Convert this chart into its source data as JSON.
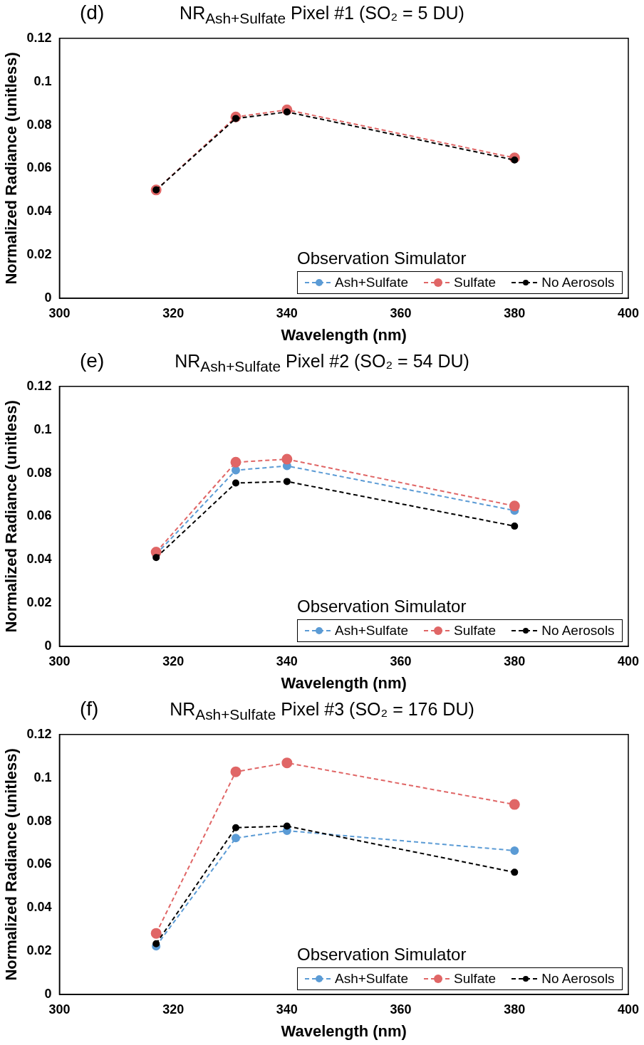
{
  "chart_data": [
    {
      "type": "line",
      "title": "NR$_{Ash+Sulfate}$  Pixel #1   (SO₂ = 5 DU)",
      "annotations": [
        "(d)"
      ],
      "xlabel": "Wavelength (nm)",
      "ylabel": "Normalized Radiance (unitless)",
      "legend_title": "Observation Simulator",
      "legend": "bottom right",
      "marker": "circle",
      "line_style": "dashed",
      "grid": false,
      "x": [
        317,
        331,
        340,
        380
      ],
      "xlim": [
        300,
        400
      ],
      "xticks": [
        300,
        320,
        340,
        360,
        380,
        400
      ],
      "ylim": [
        0,
        0.12
      ],
      "yticks": [
        0,
        0.02,
        0.04,
        0.06,
        0.08,
        0.1,
        0.12
      ],
      "series": [
        {
          "name": "Ash+Sulfate",
          "color": "#5b9bd5",
          "values": [
            null,
            null,
            null,
            null
          ]
        },
        {
          "name": "Sulfate",
          "color": "#e06666",
          "values": [
            0.05,
            0.0837,
            0.087,
            0.0648
          ]
        },
        {
          "name": "No Aerosols",
          "color": "#000000",
          "values": [
            0.05,
            0.083,
            0.086,
            0.0638
          ]
        }
      ]
    },
    {
      "type": "line",
      "title": "NR$_{Ash+Sulfate}$  Pixel #2   (SO₂ = 54 DU)",
      "annotations": [
        "(e)"
      ],
      "xlabel": "Wavelength (nm)",
      "ylabel": "Normalized Radiance (unitless)",
      "legend_title": "Observation Simulator",
      "legend": "bottom right",
      "marker": "circle",
      "line_style": "dashed",
      "grid": false,
      "x": [
        317,
        331,
        340,
        380
      ],
      "xlim": [
        300,
        400
      ],
      "xticks": [
        300,
        320,
        340,
        360,
        380,
        400
      ],
      "ylim": [
        0,
        0.12
      ],
      "yticks": [
        0,
        0.02,
        0.04,
        0.06,
        0.08,
        0.1,
        0.12
      ],
      "series": [
        {
          "name": "Ash+Sulfate",
          "color": "#5b9bd5",
          "values": [
            0.0425,
            0.0813,
            0.0833,
            0.0627
          ]
        },
        {
          "name": "Sulfate",
          "color": "#e06666",
          "values": [
            0.0435,
            0.085,
            0.0864,
            0.0648
          ]
        },
        {
          "name": "No Aerosols",
          "color": "#000000",
          "values": [
            0.041,
            0.0754,
            0.0761,
            0.0555
          ]
        }
      ]
    },
    {
      "type": "line",
      "title": "NR$_{Ash+Sulfate}$  Pixel #3   (SO₂ = 176 DU)",
      "annotations": [
        "(f)"
      ],
      "xlabel": "Wavelength (nm)",
      "ylabel": "Normalized Radiance (unitless)",
      "legend_title": "Observation Simulator",
      "legend": "bottom right",
      "marker": "circle",
      "line_style": "dashed",
      "grid": false,
      "x": [
        317,
        331,
        340,
        380
      ],
      "xlim": [
        300,
        400
      ],
      "xticks": [
        300,
        320,
        340,
        360,
        380,
        400
      ],
      "ylim": [
        0,
        0.12
      ],
      "yticks": [
        0,
        0.02,
        0.04,
        0.06,
        0.08,
        0.1,
        0.12
      ],
      "series": [
        {
          "name": "Ash+Sulfate",
          "color": "#5b9bd5",
          "values": [
            0.0223,
            0.0722,
            0.0756,
            0.0664
          ]
        },
        {
          "name": "Sulfate",
          "color": "#e06666",
          "values": [
            0.0282,
            0.1028,
            0.1069,
            0.0877
          ]
        },
        {
          "name": "No Aerosols",
          "color": "#000000",
          "values": [
            0.0234,
            0.077,
            0.0777,
            0.0564
          ]
        }
      ]
    }
  ]
}
